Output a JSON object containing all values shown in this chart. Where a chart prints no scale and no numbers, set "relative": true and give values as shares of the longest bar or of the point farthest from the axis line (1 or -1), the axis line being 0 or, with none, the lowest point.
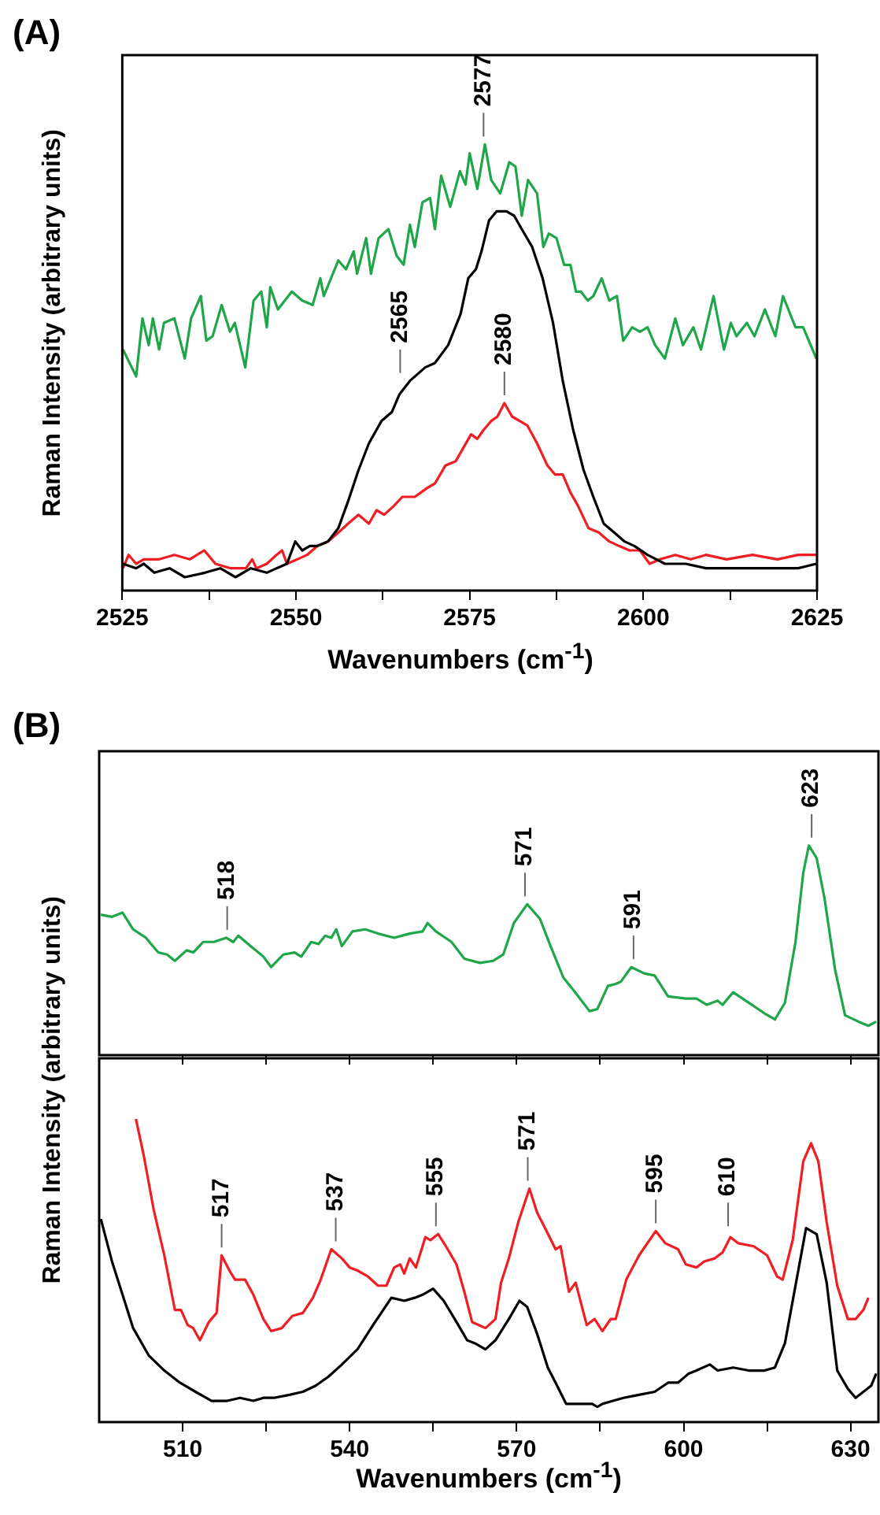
{
  "chart_data": [
    {
      "type": "line",
      "title": "(A)",
      "xlabel": "Wavenumbers (cm$^{-1}$)",
      "ylabel": "Raman Intensity (arbitrary units)",
      "relative": true,
      "tick_labels": "x",
      "xlim": [
        2525,
        2625
      ],
      "xticks": [
        2525,
        {
          "value": 2537.5,
          "label": null
        },
        2550,
        {
          "value": 2562.5,
          "label": null
        },
        2575,
        {
          "value": 2587.5,
          "label": null
        },
        2600,
        {
          "value": 2612.5,
          "label": null
        },
        2625
      ],
      "series": [
        {
          "color": "#1fa64a",
          "x": [
            2525.1,
            2527.0,
            2527.9,
            2528.8,
            2529.4,
            2530.3,
            2531.0,
            2532.5,
            2534.0,
            2534.9,
            2536.3,
            2537.1,
            2538.0,
            2539.3,
            2540.5,
            2541.2,
            2542.7,
            2543.9,
            2545.0,
            2545.8,
            2546.3,
            2547.4,
            2549.4,
            2550.9,
            2552.4,
            2553.5,
            2554.0,
            2556.1,
            2557.2,
            2558.3,
            2558.8,
            2560.1,
            2560.8,
            2561.9,
            2563.3,
            2564.5,
            2565.5,
            2566.4,
            2567.1,
            2568.2,
            2569.3,
            2570.0,
            2570.9,
            2572.2,
            2573.6,
            2574.4,
            2575.0,
            2576.1,
            2577.2,
            2578.1,
            2579.4,
            2580.7,
            2581.6,
            2582.5,
            2583.4,
            2584.7,
            2585.6,
            2586.4,
            2587.5,
            2588.6,
            2589.5,
            2590.3,
            2591.0,
            2592.0,
            2592.8,
            2594.0,
            2595.1,
            2596.2,
            2597.1,
            2598.4,
            2599.5,
            2600.6,
            2601.7,
            2603.1,
            2604.6,
            2605.7,
            2607.2,
            2608.3,
            2610.1,
            2611.6,
            2612.6,
            2613.4,
            2614.9,
            2616.0,
            2617.5,
            2619.0,
            2620.1,
            2621.9,
            2623.0,
            2624.9
          ],
          "values": [
            0.54,
            0.48,
            0.61,
            0.55,
            0.61,
            0.54,
            0.6,
            0.61,
            0.52,
            0.61,
            0.66,
            0.56,
            0.57,
            0.64,
            0.58,
            0.6,
            0.5,
            0.65,
            0.67,
            0.59,
            0.68,
            0.63,
            0.67,
            0.65,
            0.64,
            0.7,
            0.66,
            0.74,
            0.72,
            0.76,
            0.71,
            0.79,
            0.71,
            0.79,
            0.81,
            0.75,
            0.73,
            0.82,
            0.77,
            0.87,
            0.88,
            0.81,
            0.93,
            0.86,
            0.94,
            0.91,
            0.98,
            0.9,
            1.0,
            0.92,
            0.89,
            0.96,
            0.95,
            0.84,
            0.92,
            0.89,
            0.77,
            0.8,
            0.79,
            0.73,
            0.73,
            0.67,
            0.67,
            0.65,
            0.66,
            0.7,
            0.65,
            0.66,
            0.56,
            0.59,
            0.58,
            0.59,
            0.55,
            0.52,
            0.61,
            0.55,
            0.59,
            0.54,
            0.66,
            0.54,
            0.6,
            0.57,
            0.6,
            0.57,
            0.63,
            0.57,
            0.66,
            0.59,
            0.59,
            0.52
          ]
        },
        {
          "color": "#000000",
          "x": [
            2525.1,
            2527.0,
            2528.1,
            2529.6,
            2531.8,
            2534.0,
            2536.9,
            2539.1,
            2541.3,
            2543.5,
            2545.8,
            2547.2,
            2548.7,
            2549.9,
            2550.9,
            2552.0,
            2553.1,
            2554.6,
            2556.1,
            2557.5,
            2559.0,
            2560.5,
            2562.3,
            2563.8,
            2564.9,
            2566.4,
            2568.6,
            2570.0,
            2571.9,
            2573.7,
            2574.8,
            2575.9,
            2576.7,
            2577.8,
            2578.9,
            2580.3,
            2581.4,
            2582.5,
            2584.0,
            2585.5,
            2587.0,
            2588.4,
            2589.9,
            2591.4,
            2592.8,
            2594.3,
            2595.8,
            2597.3,
            2598.7,
            2600.6,
            2603.1,
            2606.1,
            2609.0,
            2612.0,
            2615.7,
            2619.3,
            2622.3,
            2624.9
          ],
          "values": [
            0.06,
            0.05,
            0.06,
            0.04,
            0.05,
            0.03,
            0.04,
            0.05,
            0.03,
            0.05,
            0.04,
            0.05,
            0.06,
            0.11,
            0.09,
            0.1,
            0.1,
            0.11,
            0.14,
            0.2,
            0.27,
            0.33,
            0.38,
            0.4,
            0.44,
            0.47,
            0.5,
            0.51,
            0.55,
            0.62,
            0.7,
            0.72,
            0.76,
            0.83,
            0.85,
            0.85,
            0.84,
            0.81,
            0.77,
            0.7,
            0.6,
            0.47,
            0.36,
            0.27,
            0.21,
            0.15,
            0.13,
            0.11,
            0.1,
            0.08,
            0.06,
            0.06,
            0.05,
            0.05,
            0.05,
            0.05,
            0.05,
            0.06
          ]
        },
        {
          "color": "#f01e23",
          "x": [
            2525.1,
            2525.9,
            2527.0,
            2528.1,
            2530.3,
            2532.5,
            2534.7,
            2536.8,
            2538.4,
            2540.6,
            2542.8,
            2543.7,
            2544.3,
            2545.8,
            2547.2,
            2548.0,
            2548.7,
            2550.2,
            2551.6,
            2553.1,
            2554.6,
            2556.1,
            2557.5,
            2559.0,
            2560.5,
            2561.6,
            2562.7,
            2564.1,
            2565.3,
            2567.1,
            2568.9,
            2570.0,
            2571.5,
            2573.0,
            2574.1,
            2575.2,
            2576.1,
            2577.0,
            2578.1,
            2579.0,
            2580.0,
            2581.1,
            2582.2,
            2583.3,
            2584.7,
            2586.2,
            2587.3,
            2588.4,
            2589.5,
            2590.6,
            2592.1,
            2593.6,
            2595.1,
            2596.5,
            2598.0,
            2599.5,
            2600.9,
            2602.4,
            2604.6,
            2606.8,
            2609.0,
            2612.0,
            2615.7,
            2619.3,
            2622.3,
            2624.9
          ],
          "values": [
            0.05,
            0.08,
            0.06,
            0.07,
            0.07,
            0.08,
            0.07,
            0.09,
            0.06,
            0.05,
            0.05,
            0.07,
            0.05,
            0.06,
            0.08,
            0.09,
            0.06,
            0.07,
            0.08,
            0.1,
            0.11,
            0.13,
            0.15,
            0.17,
            0.15,
            0.18,
            0.17,
            0.19,
            0.21,
            0.21,
            0.23,
            0.24,
            0.28,
            0.29,
            0.32,
            0.35,
            0.34,
            0.36,
            0.38,
            0.39,
            0.42,
            0.39,
            0.38,
            0.37,
            0.33,
            0.28,
            0.26,
            0.26,
            0.22,
            0.19,
            0.14,
            0.13,
            0.11,
            0.1,
            0.09,
            0.09,
            0.06,
            0.07,
            0.08,
            0.07,
            0.08,
            0.07,
            0.08,
            0.07,
            0.08,
            0.08
          ]
        }
      ],
      "annotations": [
        {
          "text": "2577",
          "x": 2577,
          "y": 1.0
        },
        {
          "text": "2565",
          "x": 2565,
          "y": 0.47
        },
        {
          "text": "2580",
          "x": 2580,
          "y": 0.42
        }
      ]
    },
    {
      "type": "line",
      "title": "(B)",
      "ylabel": "Raman Intensity (arbitrary units)",
      "relative": true,
      "tick_labels": false,
      "xlim": [
        495,
        635
      ],
      "xticks": [
        510,
        525,
        540,
        555,
        570,
        585,
        600,
        615,
        630
      ],
      "series": [
        {
          "color": "#1fa64a",
          "x": [
            495.3,
            497.3,
            499.2,
            501.1,
            503.4,
            505.6,
            507.2,
            508.6,
            510.7,
            511.9,
            513.7,
            515.6,
            517.8,
            519.1,
            520.0,
            522.2,
            524.5,
            525.9,
            528.1,
            530.1,
            531.3,
            533.1,
            534.4,
            535.6,
            536.7,
            537.6,
            538.6,
            540.5,
            542.8,
            545.1,
            548.0,
            550.8,
            553.1,
            554.0,
            555.5,
            558.3,
            560.6,
            563.4,
            565.8,
            567.6,
            569.5,
            571.9,
            574.2,
            576.1,
            578.4,
            580.8,
            583.1,
            584.5,
            586.4,
            587.8,
            588.7,
            590.6,
            592.9,
            594.8,
            597.2,
            600.4,
            602.3,
            604.2,
            606.1,
            607.0,
            608.9,
            611.7,
            614.5,
            616.4,
            618.2,
            620.1,
            621.5,
            622.5,
            623.9,
            625.3,
            627.2,
            629.0,
            631.4,
            633.2,
            634.6
          ],
          "values": [
            0.67,
            0.66,
            0.68,
            0.6,
            0.56,
            0.49,
            0.48,
            0.45,
            0.5,
            0.49,
            0.54,
            0.54,
            0.56,
            0.54,
            0.57,
            0.52,
            0.47,
            0.42,
            0.48,
            0.49,
            0.47,
            0.54,
            0.53,
            0.57,
            0.56,
            0.6,
            0.52,
            0.59,
            0.6,
            0.58,
            0.56,
            0.58,
            0.59,
            0.63,
            0.59,
            0.54,
            0.46,
            0.44,
            0.45,
            0.48,
            0.63,
            0.72,
            0.65,
            0.52,
            0.37,
            0.29,
            0.21,
            0.22,
            0.33,
            0.34,
            0.35,
            0.42,
            0.39,
            0.38,
            0.28,
            0.27,
            0.27,
            0.24,
            0.26,
            0.24,
            0.3,
            0.25,
            0.2,
            0.17,
            0.25,
            0.54,
            0.87,
            1.0,
            0.94,
            0.75,
            0.41,
            0.19,
            0.16,
            0.14,
            0.16
          ]
        }
      ],
      "annotations": [
        {
          "text": "518",
          "x": 518,
          "y": 0.56
        },
        {
          "text": "571",
          "x": 571.5,
          "y": 0.72
        },
        {
          "text": "591",
          "x": 591,
          "y": 0.42
        },
        {
          "text": "623",
          "x": 623,
          "y": 1.0
        }
      ]
    },
    {
      "type": "line",
      "xlabel": "Wavenumbers (cm$^{-1}$)",
      "relative": true,
      "tick_labels": "x",
      "xlim": [
        495,
        635
      ],
      "xticks": [
        510,
        {
          "value": 525,
          "label": null
        },
        540,
        {
          "value": 555,
          "label": null
        },
        570,
        {
          "value": 585,
          "label": null
        },
        600,
        {
          "value": 615,
          "label": null
        },
        630
      ],
      "series": [
        {
          "color": "#f01e23",
          "x": [
            501.6,
            503.0,
            504.8,
            506.7,
            508.6,
            509.7,
            510.9,
            511.9,
            513.1,
            514.7,
            516.1,
            517.0,
            518.4,
            519.4,
            521.2,
            522.7,
            524.5,
            525.9,
            527.8,
            529.7,
            531.6,
            533.4,
            534.8,
            536.7,
            538.6,
            540.0,
            541.4,
            543.3,
            545.1,
            546.6,
            548.0,
            549.1,
            549.8,
            550.8,
            551.9,
            553.6,
            554.5,
            555.9,
            557.3,
            559.2,
            560.6,
            562.0,
            564.4,
            566.2,
            567.2,
            568.6,
            570.3,
            572.3,
            573.7,
            575.1,
            577.0,
            577.9,
            579.4,
            580.6,
            582.6,
            584.0,
            585.4,
            586.9,
            587.8,
            589.7,
            592.0,
            595.0,
            596.7,
            599.0,
            600.4,
            602.3,
            603.7,
            605.6,
            607.0,
            608.4,
            609.8,
            612.6,
            615.0,
            616.8,
            617.8,
            619.6,
            621.5,
            622.9,
            624.2,
            625.7,
            627.6,
            629.5,
            630.9,
            632.3,
            633.2
          ],
          "values": [
            1.0,
            0.88,
            0.7,
            0.55,
            0.37,
            0.37,
            0.32,
            0.31,
            0.27,
            0.33,
            0.36,
            0.55,
            0.5,
            0.47,
            0.47,
            0.42,
            0.34,
            0.3,
            0.31,
            0.35,
            0.36,
            0.41,
            0.47,
            0.57,
            0.54,
            0.51,
            0.5,
            0.48,
            0.45,
            0.45,
            0.51,
            0.52,
            0.49,
            0.54,
            0.51,
            0.61,
            0.6,
            0.62,
            0.58,
            0.52,
            0.43,
            0.33,
            0.31,
            0.34,
            0.46,
            0.54,
            0.66,
            0.77,
            0.69,
            0.64,
            0.57,
            0.58,
            0.43,
            0.46,
            0.32,
            0.34,
            0.3,
            0.34,
            0.34,
            0.47,
            0.55,
            0.63,
            0.59,
            0.57,
            0.52,
            0.51,
            0.53,
            0.54,
            0.56,
            0.61,
            0.59,
            0.58,
            0.55,
            0.48,
            0.47,
            0.6,
            0.86,
            0.92,
            0.86,
            0.66,
            0.45,
            0.34,
            0.34,
            0.37,
            0.41
          ]
        },
        {
          "color": "#000000",
          "x": [
            495.3,
            497.3,
            499.2,
            501.1,
            503.9,
            506.7,
            509.5,
            512.3,
            515.2,
            518.0,
            520.3,
            522.7,
            524.5,
            526.4,
            529.2,
            531.6,
            533.9,
            536.2,
            538.6,
            541.4,
            544.2,
            547.5,
            549.8,
            551.7,
            553.1,
            555.0,
            556.9,
            559.2,
            561.1,
            562.5,
            564.4,
            566.2,
            568.6,
            570.5,
            571.9,
            573.7,
            575.6,
            577.0,
            578.9,
            581.7,
            583.6,
            584.5,
            585.4,
            587.3,
            589.2,
            592.0,
            594.8,
            597.2,
            599.0,
            600.9,
            602.3,
            604.7,
            606.1,
            608.9,
            611.7,
            614.5,
            616.4,
            618.2,
            620.6,
            622.0,
            623.9,
            625.7,
            627.6,
            629.5,
            630.9,
            632.3,
            633.7,
            634.6
          ],
          "values": [
            0.67,
            0.53,
            0.42,
            0.31,
            0.22,
            0.17,
            0.13,
            0.1,
            0.07,
            0.07,
            0.08,
            0.07,
            0.08,
            0.08,
            0.09,
            0.1,
            0.12,
            0.15,
            0.19,
            0.24,
            0.32,
            0.41,
            0.4,
            0.41,
            0.42,
            0.44,
            0.4,
            0.33,
            0.27,
            0.26,
            0.24,
            0.27,
            0.34,
            0.4,
            0.38,
            0.29,
            0.18,
            0.13,
            0.06,
            0.06,
            0.06,
            0.05,
            0.06,
            0.07,
            0.08,
            0.09,
            0.1,
            0.13,
            0.13,
            0.16,
            0.17,
            0.19,
            0.17,
            0.18,
            0.17,
            0.17,
            0.18,
            0.26,
            0.5,
            0.64,
            0.62,
            0.46,
            0.17,
            0.11,
            0.08,
            0.1,
            0.12,
            0.16
          ]
        }
      ],
      "annotations": [
        {
          "text": "517",
          "x": 517,
          "y": 0.55
        },
        {
          "text": "537",
          "x": 537.5,
          "y": 0.57
        },
        {
          "text": "555",
          "x": 555.5,
          "y": 0.62
        },
        {
          "text": "571",
          "x": 572,
          "y": 0.77
        },
        {
          "text": "595",
          "x": 595,
          "y": 0.63
        },
        {
          "text": "610",
          "x": 608,
          "y": 0.62
        }
      ]
    }
  ]
}
